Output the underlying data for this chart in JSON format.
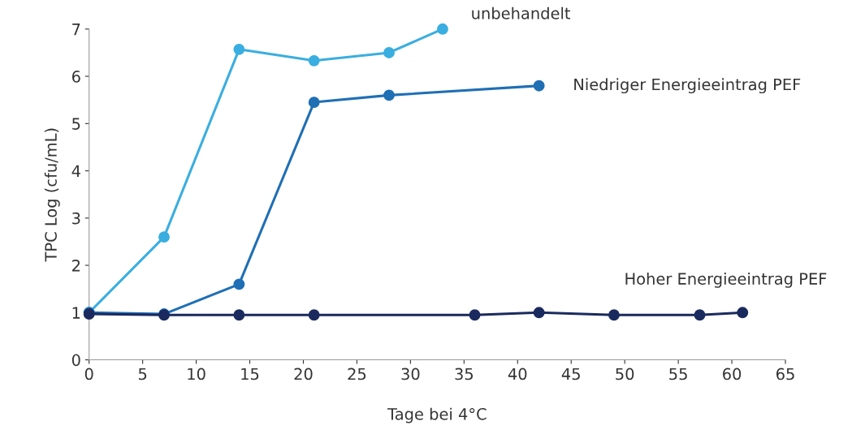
{
  "chart_data": {
    "type": "line",
    "xlabel": "Tage bei 4°C",
    "ylabel": "TPC Log (cfu/mL)",
    "xlim": [
      0,
      65
    ],
    "xticks": [
      0,
      5,
      10,
      15,
      20,
      25,
      30,
      35,
      40,
      45,
      50,
      55,
      60,
      65
    ],
    "ylim": [
      0,
      7
    ],
    "yticks": [
      0,
      1,
      2,
      3,
      4,
      5,
      6,
      7
    ],
    "grid": false,
    "legend": false,
    "marker": "circle",
    "line_style": "solid",
    "series": [
      {
        "name": "unbehandelt",
        "color": "#3aaee0",
        "x": [
          0,
          7,
          14,
          21,
          28,
          33
        ],
        "values": [
          1.0,
          2.6,
          6.57,
          6.33,
          6.5,
          7.0
        ]
      },
      {
        "name": "Niedriger Energieeintrag PEF",
        "color": "#1f6fb5",
        "x": [
          0,
          7,
          14,
          21,
          28,
          42
        ],
        "values": [
          1.0,
          0.97,
          1.6,
          5.45,
          5.6,
          5.8
        ]
      },
      {
        "name": "Hoher Energieeintrag PEF",
        "color": "#1b2a5e",
        "x": [
          0,
          7,
          14,
          21,
          36,
          42,
          49,
          57,
          61
        ],
        "values": [
          0.97,
          0.95,
          0.95,
          0.95,
          0.95,
          1.0,
          0.95,
          0.95,
          1.0
        ]
      }
    ]
  }
}
